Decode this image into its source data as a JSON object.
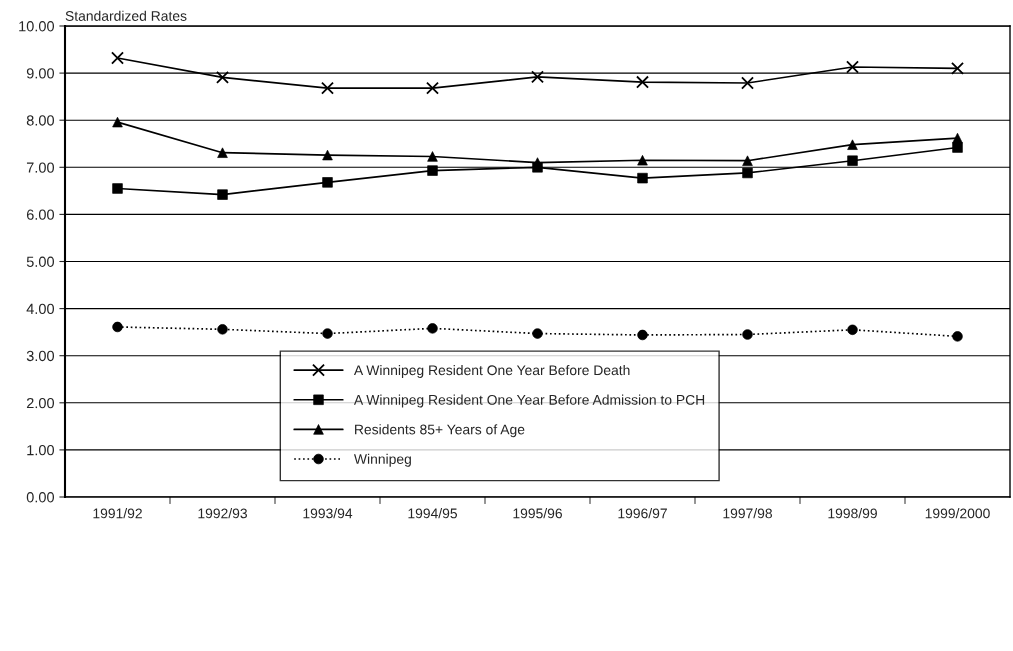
{
  "chart_data": {
    "type": "line",
    "ylabel": "Standardized Rates",
    "categories": [
      "1991/92",
      "1992/93",
      "1993/94",
      "1994/95",
      "1995/96",
      "1996/97",
      "1997/98",
      "1998/99",
      "1999/2000"
    ],
    "series": [
      {
        "name": "A Winnipeg Resident One Year Before Death",
        "color": "#000000",
        "marker": "cross",
        "line_style": "solid",
        "values": [
          9.32,
          8.91,
          8.68,
          8.68,
          8.92,
          8.81,
          8.79,
          9.13,
          9.1
        ]
      },
      {
        "name": "A Winnipeg Resident One Year Before Admission to PCH",
        "color": "#000000",
        "marker": "square",
        "line_style": "solid",
        "values": [
          6.55,
          6.42,
          6.68,
          6.93,
          7.0,
          6.77,
          6.88,
          7.14,
          7.42
        ]
      },
      {
        "name": "Residents 85+ Years of Age",
        "color": "#000000",
        "marker": "triangle",
        "line_style": "solid",
        "values": [
          7.96,
          7.31,
          7.26,
          7.23,
          7.1,
          7.15,
          7.14,
          7.48,
          7.62
        ]
      },
      {
        "name": "Winnipeg",
        "color": "#000000",
        "marker": "circle",
        "line_style": "dotted",
        "values": [
          3.61,
          3.56,
          3.47,
          3.58,
          3.47,
          3.44,
          3.45,
          3.55,
          3.41
        ]
      }
    ],
    "ylim": [
      0,
      10
    ],
    "yticks": [
      {
        "value": 0,
        "label": "0.00"
      },
      {
        "value": 1,
        "label": "1.00"
      },
      {
        "value": 2,
        "label": "2.00"
      },
      {
        "value": 3,
        "label": "3.00"
      },
      {
        "value": 4,
        "label": "4.00"
      },
      {
        "value": 5,
        "label": "5.00"
      },
      {
        "value": 6,
        "label": "6.00"
      },
      {
        "value": 7,
        "label": "7.00"
      },
      {
        "value": 8,
        "label": "8.00"
      },
      {
        "value": 9,
        "label": "9.00"
      },
      {
        "value": 10,
        "label": "10.00"
      }
    ],
    "grid": "y",
    "legend": "bottom"
  }
}
